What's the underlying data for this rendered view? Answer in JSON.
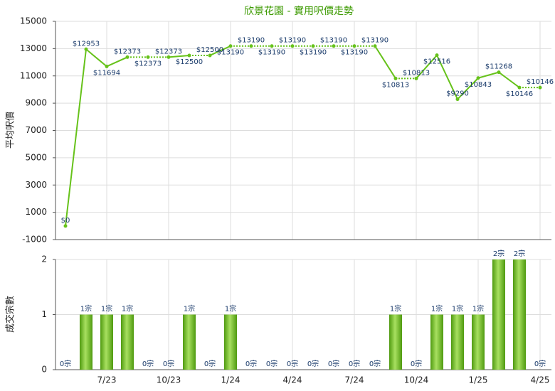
{
  "chart_data": [
    {
      "type": "line",
      "title": "欣景花園 - 實用呎價走勢",
      "y_label": "平均呎價",
      "color": "#66c21a",
      "values": [
        0,
        12953,
        11694,
        12373,
        12373,
        12373,
        12500,
        12500,
        13190,
        13190,
        13190,
        13190,
        13190,
        13190,
        13190,
        13190,
        10813,
        10813,
        12516,
        9290,
        10843,
        11268,
        10146,
        10146
      ],
      "value_labels": [
        "$0",
        "$12953",
        "$11694",
        "$12373",
        "$12373",
        "$12373",
        "$12500",
        "$12500",
        "$13190",
        "$13190",
        "$13190",
        "$13190",
        "$13190",
        "$13190",
        "$13190",
        "$13190",
        "$10813",
        "$10813",
        "$12516",
        "$9290",
        "$10843",
        "$11268",
        "$10146",
        "$10146"
      ],
      "ylim": [
        -1000,
        15000
      ],
      "yticks": [
        -1000,
        1000,
        3000,
        5000,
        7000,
        9000,
        11000,
        13000,
        15000
      ],
      "grid": true
    },
    {
      "type": "bar",
      "y_label": "成交宗數",
      "color": "#6cc01e",
      "categories": [
        null,
        null,
        "7/23",
        null,
        null,
        "10/23",
        null,
        null,
        "1/24",
        null,
        null,
        "4/24",
        null,
        null,
        "7/24",
        null,
        null,
        "10/24",
        null,
        null,
        "1/25",
        null,
        null,
        "4/25"
      ],
      "values": [
        0,
        1,
        1,
        1,
        0,
        0,
        1,
        0,
        1,
        0,
        0,
        0,
        0,
        0,
        0,
        0,
        1,
        0,
        1,
        1,
        1,
        2,
        2,
        0
      ],
      "value_labels": [
        "0宗",
        "1宗",
        "1宗",
        "1宗",
        "0宗",
        "0宗",
        "1宗",
        "0宗",
        "1宗",
        "0宗",
        "0宗",
        "0宗",
        "0宗",
        "0宗",
        "0宗",
        "0宗",
        "1宗",
        "0宗",
        "1宗",
        "1宗",
        "1宗",
        "2宗",
        "2宗",
        "0宗"
      ],
      "ylim": [
        0,
        2
      ],
      "yticks": [
        0,
        1,
        2
      ],
      "grid": true
    }
  ]
}
